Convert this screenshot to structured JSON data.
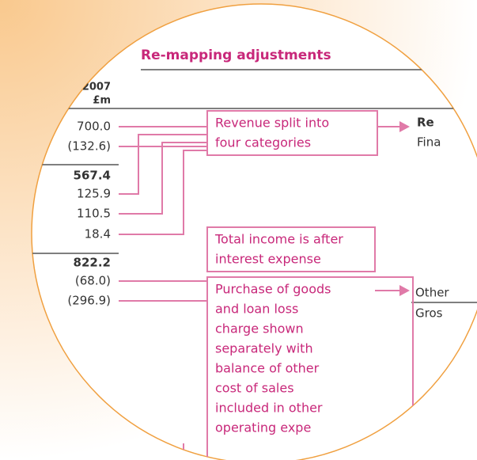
{
  "header": {
    "title": "Re-mapping adjustments",
    "year": "2007",
    "unit": "£m"
  },
  "rows": [
    {
      "value": "700.0",
      "bold": false
    },
    {
      "value": "(132.6)",
      "bold": false
    },
    {
      "value": "567.4",
      "bold": true
    },
    {
      "value": "125.9",
      "bold": false
    },
    {
      "value": "110.5",
      "bold": false
    },
    {
      "value": "18.4",
      "bold": false
    },
    {
      "value": "822.2",
      "bold": true
    },
    {
      "value": "(68.0)",
      "bold": false
    },
    {
      "value": "(296.9)",
      "bold": false
    }
  ],
  "annotations": [
    {
      "lines": [
        "Revenue split into",
        "four categories"
      ]
    },
    {
      "lines": [
        "Total income is after",
        "interest expense"
      ]
    },
    {
      "lines": [
        "Purchase of goods",
        "and loan loss",
        "charge shown",
        "separately with",
        "balance of other",
        "cost of sales",
        "included in other",
        "operating expe"
      ]
    }
  ],
  "right_labels": [
    {
      "text": "Re",
      "bold": true
    },
    {
      "text": "Fina",
      "bold": false
    },
    {
      "text": "Other",
      "bold": false
    },
    {
      "text": "Gros",
      "bold": false
    }
  ]
}
